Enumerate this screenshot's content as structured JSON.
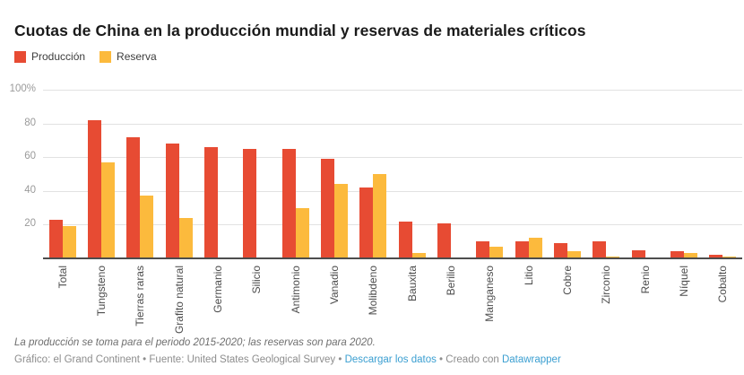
{
  "title": "Cuotas de China en la producción mundial y reservas de materiales críticos",
  "legend": {
    "produccion_label": "Producción",
    "reserva_label": "Reserva"
  },
  "colors": {
    "produccion": "#e74b33",
    "reserva": "#fcba3d",
    "gridline": "#e2e2e2",
    "axis_line": "#4d4d4d",
    "link_blue": "#3b9fd1"
  },
  "chart_data": {
    "type": "bar",
    "title": "Cuotas de China en la producción mundial y reservas de materiales críticos",
    "categories": [
      "Total",
      "Tungsteno",
      "Tierras raras",
      "Grafito natural",
      "Germanio",
      "Silicio",
      "Antimonio",
      "Vanadio",
      "Molibdeno",
      "Bauxita",
      "Berilio",
      "Manganeso",
      "Litio",
      "Cobre",
      "Zirconio",
      "Renio",
      "Níquel",
      "Cobalto"
    ],
    "series": [
      {
        "name": "Producción",
        "color": "#e74b33",
        "values": [
          23,
          82,
          72,
          68,
          66,
          65,
          65,
          59,
          42,
          22,
          21,
          10,
          10,
          9,
          10,
          5,
          4,
          2
        ]
      },
      {
        "name": "Reserva",
        "color": "#fcba3d",
        "values": [
          19,
          57,
          37,
          24,
          0,
          0,
          30,
          44,
          50,
          3,
          0,
          7,
          12,
          4,
          1,
          0,
          3,
          1
        ]
      }
    ],
    "xlabel": "",
    "ylabel": "",
    "ylim": [
      0,
      100
    ],
    "y_ticks": [
      {
        "label": "100%",
        "value": 100
      },
      {
        "label": "80",
        "value": 80
      },
      {
        "label": "60",
        "value": 60
      },
      {
        "label": "40",
        "value": 40
      },
      {
        "label": "20",
        "value": 20
      }
    ],
    "grid": true,
    "legend_position": "top-left"
  },
  "footer": {
    "note": "La producción se toma para el periodo 2015-2020; las reservas son para 2020.",
    "byline_prefix": "Gráfico: el Grand Continent • Fuente: United States Geological Survey • ",
    "download_link": "Descargar los datos",
    "byline_mid": " • Creado con ",
    "tool_link": "Datawrapper"
  }
}
